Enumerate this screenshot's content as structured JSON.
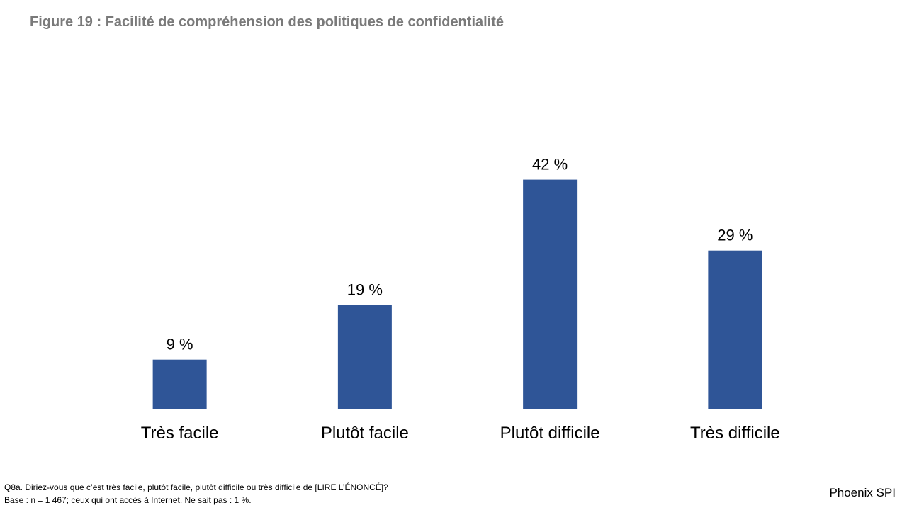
{
  "title": "Figure 19 : Facilité de compréhension des politiques de confidentialité",
  "chart_data": {
    "type": "bar",
    "categories": [
      "Très facile",
      "Plutôt facile",
      "Plutôt difficile",
      "Très difficile"
    ],
    "values": [
      9,
      19,
      42,
      29
    ],
    "data_labels": [
      "9 %",
      "19 %",
      "42 %",
      "29 %"
    ],
    "unit": "%",
    "ylim": [
      0,
      50
    ],
    "grid": false,
    "legend": "none",
    "bar_color": "#2f5597",
    "axis_color": "#d9d9d9",
    "label_color": "#000000"
  },
  "footnotes": {
    "question": "Q8a. Diriez-vous que c’est très facile, plutôt facile, plutôt difficile ou très difficile de [LIRE L’ÉNONCÉ]?",
    "base": "Base : n = 1 467; ceux qui ont accès à Internet. Ne sait pas : 1 %."
  },
  "brand": "Phoenix SPI"
}
